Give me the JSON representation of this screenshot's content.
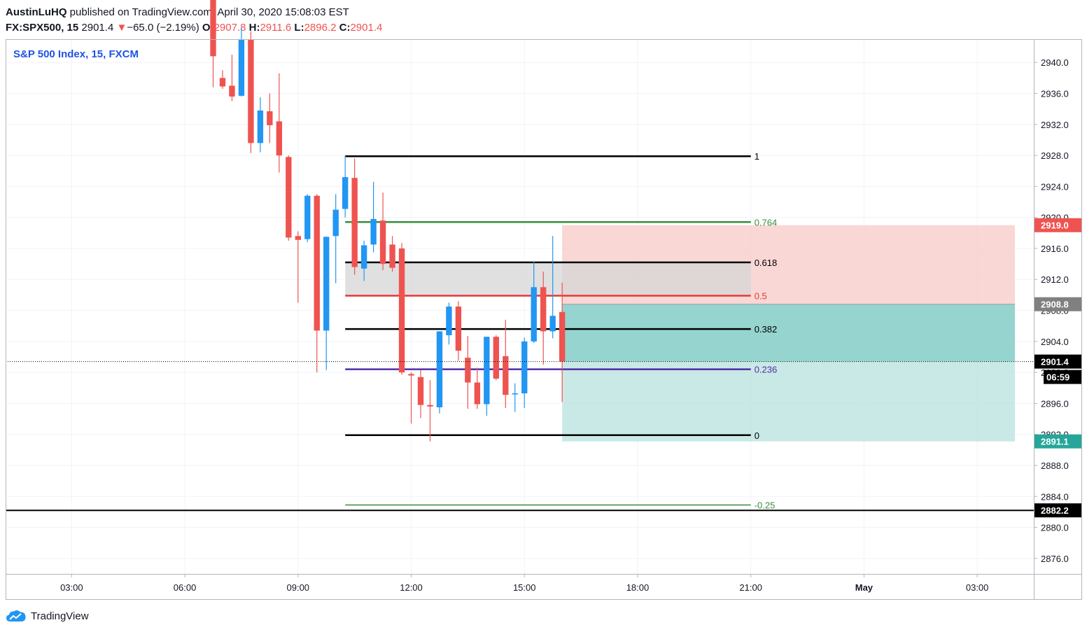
{
  "header": {
    "author": "AustinLuHQ",
    "published_text": "published on TradingView.com, April 30, 2020 15:08:03 EST",
    "symbol": "FX:SPX500, 15",
    "last": "2901.4",
    "change_arrow": "▼",
    "change": "−65.0 (−2.19%)",
    "o_label": "O:",
    "o_value": "2907.8",
    "h_label": "H:",
    "h_value": "2911.6",
    "l_label": "L:",
    "l_value": "2896.2",
    "c_label": "C:",
    "c_value": "2901.4"
  },
  "legend_title": "S&P 500 Index, 15, FXCM",
  "branding": "TradingView",
  "colors": {
    "up": "#2196f3",
    "down": "#ef5350",
    "stop_zone": "#f8cdcb",
    "target_zone": "#b2dfdb",
    "target_zone_active": "#80cbc4",
    "fib_zone": "#d5d5d5",
    "accent_blue": "#1e53e5"
  },
  "chart_data": {
    "type": "candlestick",
    "title": "S&P 500 Index, 15, FXCM",
    "interval_minutes": 15,
    "ylim": [
      2874.0,
      2943.0
    ],
    "y_ticks": [
      "2876.0",
      "2880.0",
      "2884.0",
      "2888.0",
      "2892.0",
      "2896.0",
      "2900.0",
      "2904.0",
      "2908.0",
      "2912.0",
      "2916.0",
      "2920.0",
      "2924.0",
      "2928.0",
      "2932.0",
      "2936.0",
      "2940.0"
    ],
    "x_ticks": [
      {
        "t": "2020-04-30 03:00",
        "label": "03:00",
        "bold": false
      },
      {
        "t": "2020-04-30 06:00",
        "label": "06:00",
        "bold": false
      },
      {
        "t": "2020-04-30 09:00",
        "label": "09:00",
        "bold": false
      },
      {
        "t": "2020-04-30 12:00",
        "label": "12:00",
        "bold": false
      },
      {
        "t": "2020-04-30 15:00",
        "label": "15:00",
        "bold": false
      },
      {
        "t": "2020-04-30 18:00",
        "label": "18:00",
        "bold": false
      },
      {
        "t": "2020-04-30 21:00",
        "label": "21:00",
        "bold": false
      },
      {
        "t": "2020-05-01 00:00",
        "label": "May",
        "bold": true
      },
      {
        "t": "2020-05-01 03:00",
        "label": "03:00",
        "bold": false
      }
    ],
    "xlim": [
      "2020-04-30 01:15",
      "2020-05-01 04:30"
    ],
    "grid": true,
    "candles": [
      {
        "t": "2020-04-30 06:45",
        "o": 2952.0,
        "h": 2954.0,
        "l": 2936.8,
        "c": 2940.8
      },
      {
        "t": "2020-04-30 07:00",
        "o": 2938.0,
        "h": 2939.0,
        "l": 2936.6,
        "c": 2936.9
      },
      {
        "t": "2020-04-30 07:15",
        "o": 2937.0,
        "h": 2941.0,
        "l": 2935.0,
        "c": 2935.6
      },
      {
        "t": "2020-04-30 07:30",
        "o": 2935.7,
        "h": 2944.5,
        "l": 2935.6,
        "c": 2943.0
      },
      {
        "t": "2020-04-30 07:45",
        "o": 2943.0,
        "h": 2944.0,
        "l": 2928.3,
        "c": 2929.6
      },
      {
        "t": "2020-04-30 08:00",
        "o": 2929.6,
        "h": 2935.5,
        "l": 2928.4,
        "c": 2933.8
      },
      {
        "t": "2020-04-30 08:15",
        "o": 2933.7,
        "h": 2936.0,
        "l": 2929.6,
        "c": 2931.9
      },
      {
        "t": "2020-04-30 08:30",
        "o": 2932.4,
        "h": 2938.6,
        "l": 2925.8,
        "c": 2928.0
      },
      {
        "t": "2020-04-30 08:45",
        "o": 2927.8,
        "h": 2928.0,
        "l": 2917.0,
        "c": 2917.4
      },
      {
        "t": "2020-04-30 09:00",
        "o": 2917.6,
        "h": 2918.2,
        "l": 2909.0,
        "c": 2917.1
      },
      {
        "t": "2020-04-30 09:15",
        "o": 2917.2,
        "h": 2923.0,
        "l": 2916.8,
        "c": 2922.8
      },
      {
        "t": "2020-04-30 09:30",
        "o": 2922.8,
        "h": 2923.0,
        "l": 2900.0,
        "c": 2905.4
      },
      {
        "t": "2020-04-30 09:45",
        "o": 2905.4,
        "h": 2917.5,
        "l": 2900.3,
        "c": 2917.5
      },
      {
        "t": "2020-04-30 10:00",
        "o": 2917.6,
        "h": 2923.0,
        "l": 2911.5,
        "c": 2921.0
      },
      {
        "t": "2020-04-30 10:15",
        "o": 2921.1,
        "h": 2928.0,
        "l": 2920.0,
        "c": 2925.2
      },
      {
        "t": "2020-04-30 10:30",
        "o": 2925.1,
        "h": 2927.6,
        "l": 2912.6,
        "c": 2913.6
      },
      {
        "t": "2020-04-30 10:45",
        "o": 2913.4,
        "h": 2917.0,
        "l": 2911.8,
        "c": 2916.4
      },
      {
        "t": "2020-04-30 11:00",
        "o": 2916.5,
        "h": 2924.6,
        "l": 2915.5,
        "c": 2919.8
      },
      {
        "t": "2020-04-30 11:15",
        "o": 2919.6,
        "h": 2923.2,
        "l": 2913.2,
        "c": 2914.0
      },
      {
        "t": "2020-04-30 11:30",
        "o": 2916.5,
        "h": 2917.6,
        "l": 2913.0,
        "c": 2913.5
      },
      {
        "t": "2020-04-30 11:45",
        "o": 2916.0,
        "h": 2916.7,
        "l": 2899.7,
        "c": 2900.0
      },
      {
        "t": "2020-04-30 12:00",
        "o": 2899.8,
        "h": 2900.0,
        "l": 2893.4,
        "c": 2899.6
      },
      {
        "t": "2020-04-30 12:15",
        "o": 2899.4,
        "h": 2900.3,
        "l": 2894.1,
        "c": 2895.8
      },
      {
        "t": "2020-04-30 12:30",
        "o": 2895.8,
        "h": 2899.0,
        "l": 2891.1,
        "c": 2895.6
      },
      {
        "t": "2020-04-30 12:45",
        "o": 2895.5,
        "h": 2905.3,
        "l": 2894.7,
        "c": 2905.3
      },
      {
        "t": "2020-04-30 13:00",
        "o": 2904.8,
        "h": 2909.0,
        "l": 2903.6,
        "c": 2908.5
      },
      {
        "t": "2020-04-30 13:15",
        "o": 2908.5,
        "h": 2909.2,
        "l": 2901.5,
        "c": 2902.8
      },
      {
        "t": "2020-04-30 13:30",
        "o": 2901.9,
        "h": 2904.7,
        "l": 2895.3,
        "c": 2898.7
      },
      {
        "t": "2020-04-30 13:45",
        "o": 2898.7,
        "h": 2900.6,
        "l": 2895.3,
        "c": 2895.9
      },
      {
        "t": "2020-04-30 14:00",
        "o": 2895.9,
        "h": 2904.6,
        "l": 2894.4,
        "c": 2904.6
      },
      {
        "t": "2020-04-30 14:15",
        "o": 2904.6,
        "h": 2904.8,
        "l": 2899.0,
        "c": 2899.2
      },
      {
        "t": "2020-04-30 14:30",
        "o": 2902.1,
        "h": 2906.8,
        "l": 2895.4,
        "c": 2897.1
      },
      {
        "t": "2020-04-30 14:45",
        "o": 2897.2,
        "h": 2898.6,
        "l": 2894.9,
        "c": 2897.3
      },
      {
        "t": "2020-04-30 15:00",
        "o": 2897.3,
        "h": 2904.5,
        "l": 2895.4,
        "c": 2904.0
      },
      {
        "t": "2020-04-30 15:15",
        "o": 2904.0,
        "h": 2914.3,
        "l": 2903.8,
        "c": 2911.0
      },
      {
        "t": "2020-04-30 15:30",
        "o": 2911.0,
        "h": 2913.0,
        "l": 2901.0,
        "c": 2905.3
      },
      {
        "t": "2020-04-30 15:45",
        "o": 2905.3,
        "h": 2917.6,
        "l": 2904.4,
        "c": 2907.3
      },
      {
        "t": "2020-04-30 16:00",
        "o": 2907.8,
        "h": 2911.6,
        "l": 2896.2,
        "c": 2901.4
      }
    ],
    "fibonacci": {
      "levels": [
        {
          "ratio": "1",
          "price": 2927.9,
          "color": "#000000"
        },
        {
          "ratio": "0.764",
          "price": 2919.4,
          "color": "#388e3c"
        },
        {
          "ratio": "0.618",
          "price": 2914.2,
          "color": "#000000"
        },
        {
          "ratio": "0.5",
          "price": 2909.9,
          "color": "#e53935"
        },
        {
          "ratio": "0.382",
          "price": 2905.6,
          "color": "#000000"
        },
        {
          "ratio": "0.236",
          "price": 2900.4,
          "color": "#512da8"
        },
        {
          "ratio": "0",
          "price": 2891.9,
          "color": "#000000"
        },
        {
          "ratio": "-0.25",
          "price": 2882.9,
          "color": "#388e3c"
        }
      ],
      "start_t": "2020-04-30 10:15",
      "end_t": "2020-04-30 21:00",
      "zone_top": 2914.2,
      "zone_bottom": 2909.9
    },
    "position": {
      "entry": 2908.8,
      "stop": 2919.0,
      "target": 2891.1,
      "current": 2901.4,
      "start_t": "2020-04-30 16:00",
      "end_t": "2020-05-01 04:00"
    },
    "horizontal_line": 2882.2,
    "current_price": 2901.4,
    "countdown": "06:59",
    "price_labels": [
      {
        "price": 2919.0,
        "text": "2919.0",
        "bg": "#ef5350",
        "fg": "#ffffff"
      },
      {
        "price": 2908.8,
        "text": "2908.8",
        "bg": "#808080",
        "fg": "#ffffff"
      },
      {
        "price": 2901.4,
        "text": "2901.4",
        "bg": "#000000",
        "fg": "#ffffff"
      },
      {
        "price": 2891.1,
        "text": "2891.1",
        "bg": "#26a69a",
        "fg": "#ffffff"
      },
      {
        "price": 2882.2,
        "text": "2882.2",
        "bg": "#000000",
        "fg": "#ffffff"
      }
    ]
  }
}
